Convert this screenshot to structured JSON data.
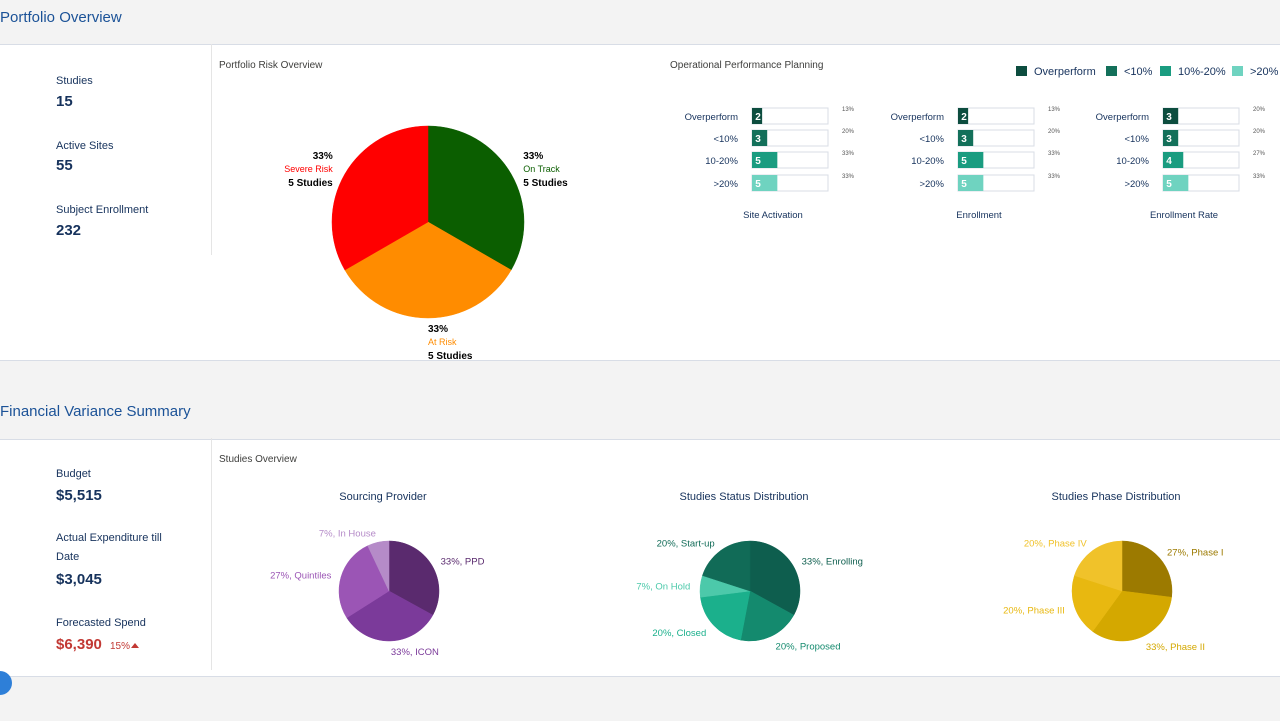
{
  "portfolio": {
    "title": "Portfolio Overview",
    "metrics": [
      {
        "label": "Studies",
        "value": "15"
      },
      {
        "label": "Active Sites",
        "value": "55"
      },
      {
        "label": "Subject Enrollment",
        "value": "232"
      }
    ],
    "risk_chart": {
      "type": "pie",
      "title": "Portfolio Risk Overview",
      "slices": [
        {
          "name": "On Track",
          "value": 33,
          "value_label": "33%",
          "count_label": "5 Studies",
          "color": "#0b5e00"
        },
        {
          "name": "At Risk",
          "value": 33,
          "value_label": "33%",
          "count_label": "5 Studies",
          "color": "#ff8c00"
        },
        {
          "name": "Severe Risk",
          "value": 33,
          "value_label": "33%",
          "count_label": "5 Studies",
          "color": "#ff0000"
        }
      ]
    },
    "performance": {
      "title": "Operational Performance Planning",
      "legend": [
        {
          "name": "Overperform",
          "color": "#0d4d3f"
        },
        {
          "name": "<10%",
          "color": "#13705a"
        },
        {
          "name": "10%-20%",
          "color": "#1a9c80"
        },
        {
          "name": ">20%",
          "color": "#6fd3c0"
        }
      ],
      "row_labels": [
        "Overperform",
        "<10%",
        "10-20%",
        ">20%"
      ],
      "groups": [
        {
          "title": "Site Activation",
          "values": [
            2,
            3,
            5,
            5
          ],
          "share_labels": [
            "13%",
            "20%",
            "33%",
            "33%"
          ]
        },
        {
          "title": "Enrollment",
          "values": [
            2,
            3,
            5,
            5
          ],
          "share_labels": [
            "13%",
            "20%",
            "33%",
            "33%"
          ]
        },
        {
          "title": "Enrollment Rate",
          "values": [
            3,
            3,
            4,
            5
          ],
          "share_labels": [
            "20%",
            "20%",
            "27%",
            "33%"
          ]
        }
      ]
    }
  },
  "financial": {
    "title": "Financial Variance Summary",
    "metrics": [
      {
        "label": "Budget",
        "value": "$5,515"
      },
      {
        "label": "Actual Expenditure till Date",
        "value": "$3,045"
      },
      {
        "label": "Forecasted Spend",
        "value": "$6,390",
        "change": "15%"
      }
    ],
    "overview": {
      "title": "Studies Overview",
      "charts": [
        {
          "type": "pie",
          "title": "Sourcing Provider",
          "slices": [
            {
              "value": 33,
              "value_label": "33%, PPD",
              "color": "#5a2a6e"
            },
            {
              "value": 33,
              "value_label": "33%, ICON",
              "color": "#7b3a9a"
            },
            {
              "value": 27,
              "value_label": "27%, Quintiles",
              "color": "#9b55b5"
            },
            {
              "value": 7,
              "value_label": "7%, In House",
              "color": "#b58bc8"
            }
          ]
        },
        {
          "type": "pie",
          "title": "Studies Status Distribution",
          "slices": [
            {
              "value": 33,
              "value_label": "33%, Enrolling",
              "color": "#0e5e4e"
            },
            {
              "value": 20,
              "value_label": "20%, Proposed",
              "color": "#148a6e"
            },
            {
              "value": 20,
              "value_label": "20%, Closed",
              "color": "#1bb08c"
            },
            {
              "value": 7,
              "value_label": "7%, On Hold",
              "color": "#4cc9aa"
            },
            {
              "value": 20,
              "value_label": "20%, Start-up",
              "color": "#116b57"
            }
          ]
        },
        {
          "type": "pie",
          "title": "Studies Phase Distribution",
          "slices": [
            {
              "value": 27,
              "value_label": "27%, Phase I",
              "color": "#9c7a00"
            },
            {
              "value": 33,
              "value_label": "33%, Phase II",
              "color": "#d4a800"
            },
            {
              "value": 20,
              "value_label": "20%, Phase III",
              "color": "#e8b810"
            },
            {
              "value": 20,
              "value_label": "20%, Phase IV",
              "color": "#f0c22a"
            }
          ]
        }
      ]
    }
  }
}
